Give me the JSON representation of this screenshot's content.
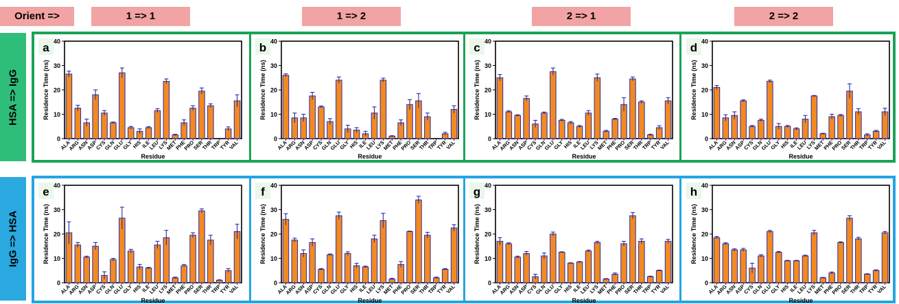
{
  "header": {
    "orient_label": "Orient =>",
    "columns": [
      "1 => 1",
      "1 => 2",
      "2 => 1",
      "2 => 2"
    ]
  },
  "rows": [
    "HSA  => IgG",
    "IgG  => HSA"
  ],
  "colors": {
    "bar": "#f28a22",
    "bar_edge": "#2b2ba0",
    "error": "#2b2ba0",
    "row1_border": "#1aa356",
    "row2_border": "#25a4e3",
    "header_bg": "#f2a3a3"
  },
  "chart_data": [
    {
      "panel_label": "a",
      "type": "bar",
      "xlabel": "Residue",
      "ylabel": "Residence Time (ns)",
      "ylim": [
        0,
        40
      ],
      "yticks": [
        0,
        10,
        20,
        30,
        40
      ],
      "categories": [
        "ALA",
        "ARG",
        "ASN",
        "ASP",
        "CYS",
        "GLN",
        "GLU",
        "GLY",
        "HIS",
        "ILE",
        "LEU",
        "LYS",
        "MET",
        "PHE",
        "PRO",
        "SER",
        "THR",
        "TRP",
        "TYR",
        "VAL"
      ],
      "values": [
        26.5,
        12.5,
        6.5,
        18,
        10.5,
        6.5,
        27,
        4.5,
        3,
        4.5,
        11.5,
        23.5,
        1.5,
        6.5,
        12.5,
        19.5,
        13.5,
        0,
        4,
        15.5
      ],
      "errors": [
        1.2,
        1.2,
        1.5,
        2,
        1,
        0.3,
        2,
        0.5,
        1,
        0.4,
        0.8,
        1,
        0.3,
        1.2,
        1,
        1.3,
        0.8,
        0,
        0.8,
        2.5
      ]
    },
    {
      "panel_label": "b",
      "type": "bar",
      "xlabel": "Residue",
      "ylabel": "Residence Time (ns)",
      "ylim": [
        0,
        40
      ],
      "yticks": [
        0,
        10,
        20,
        30,
        40
      ],
      "categories": [
        "ALA",
        "ARG",
        "ASN",
        "ASP",
        "CYS",
        "GLN",
        "GLU",
        "GLY",
        "HIS",
        "ILE",
        "LEU",
        "LYS",
        "MET",
        "PHE",
        "PRO",
        "SER",
        "THR",
        "TRP",
        "TYR",
        "VAL"
      ],
      "values": [
        26,
        8.5,
        8.5,
        17.5,
        13,
        7,
        24,
        4,
        3.5,
        2,
        10.5,
        24,
        1,
        6.5,
        14,
        15.5,
        9,
        0,
        2,
        12
      ],
      "errors": [
        0.6,
        2,
        1.5,
        1.5,
        0.4,
        1.2,
        1.3,
        1.5,
        1,
        1,
        2.5,
        0.8,
        0.2,
        1.2,
        2,
        3,
        1.5,
        0,
        0.6,
        1.5
      ]
    },
    {
      "panel_label": "c",
      "type": "bar",
      "xlabel": "Residue",
      "ylabel": "Residence Time (ns)",
      "ylim": [
        0,
        40
      ],
      "yticks": [
        0,
        10,
        20,
        30,
        40
      ],
      "categories": [
        "ALA",
        "ARG",
        "ASN",
        "ASP",
        "CYS",
        "GLN",
        "GLU",
        "GLY",
        "HIS",
        "ILE",
        "LEU",
        "LYS",
        "MET",
        "PHE",
        "PRO",
        "SER",
        "THR",
        "TRP",
        "TYR",
        "VAL"
      ],
      "values": [
        25,
        11,
        9.5,
        16.5,
        6,
        10.5,
        27.5,
        7.5,
        6.5,
        5,
        10.5,
        25,
        3,
        8,
        14,
        24.5,
        15,
        1.5,
        4.5,
        15.5
      ],
      "errors": [
        1.3,
        0.4,
        0.3,
        1,
        1.5,
        0.4,
        1.5,
        0.4,
        0.5,
        0.4,
        1,
        1.5,
        0.4,
        0.3,
        2.8,
        0.8,
        0.5,
        0.3,
        0.8,
        1.3
      ]
    },
    {
      "panel_label": "d",
      "type": "bar",
      "xlabel": "Residue",
      "ylabel": "Residence Time (ns)",
      "ylim": [
        0,
        40
      ],
      "yticks": [
        0,
        10,
        20,
        30,
        40
      ],
      "categories": [
        "ALA",
        "ARG",
        "ASN",
        "ASP",
        "CYS",
        "GLN",
        "GLU",
        "GLY",
        "HIS",
        "ILE",
        "LEU",
        "LYS",
        "MET",
        "PHE",
        "PRO",
        "SER",
        "THR",
        "TRP",
        "TYR",
        "VAL"
      ],
      "values": [
        21,
        8.5,
        9.5,
        15.5,
        5,
        7.5,
        23.5,
        5,
        5,
        4,
        8,
        17.5,
        2,
        9,
        9.5,
        19.5,
        11,
        1.5,
        3,
        11
      ],
      "errors": [
        0.8,
        1.3,
        1.5,
        0.4,
        0.4,
        0.5,
        0.5,
        1.2,
        0.4,
        0.4,
        1.5,
        0.2,
        0.2,
        1,
        0.4,
        3,
        1.3,
        0.5,
        0.4,
        1.5
      ]
    },
    {
      "panel_label": "e",
      "type": "bar",
      "xlabel": "Residue",
      "ylabel": "Residence Time (ns)",
      "ylim": [
        0,
        40
      ],
      "yticks": [
        0,
        10,
        20,
        30,
        40
      ],
      "categories": [
        "ALA",
        "ARG",
        "ASN",
        "ASP",
        "CYS",
        "GLN",
        "GLU",
        "GLY",
        "HIS",
        "ILE",
        "LEU",
        "LYS",
        "MET",
        "PHE",
        "PRO",
        "SER",
        "THR",
        "TRP",
        "TYR",
        "VAL"
      ],
      "values": [
        20.5,
        15.5,
        10.5,
        15,
        3,
        9.5,
        26.5,
        13,
        6.5,
        6,
        15.5,
        18.5,
        2,
        7,
        19.5,
        29.5,
        17.5,
        1,
        5,
        21
      ],
      "errors": [
        4.5,
        1,
        0.4,
        1.5,
        1.5,
        0.5,
        4.5,
        0.7,
        1,
        0.3,
        1.5,
        3,
        0.3,
        0.5,
        1,
        0.8,
        2,
        0.2,
        0.8,
        3
      ]
    },
    {
      "panel_label": "f",
      "type": "bar",
      "xlabel": "Residue",
      "ylabel": "Residence Time (ns)",
      "ylim": [
        0,
        40
      ],
      "yticks": [
        0,
        10,
        20,
        30,
        40
      ],
      "categories": [
        "ALA",
        "ARG",
        "ASN",
        "ASP",
        "CYS",
        "GLN",
        "GLU",
        "GLY",
        "HIS",
        "ILE",
        "LEU",
        "LYS",
        "MET",
        "PHE",
        "PRO",
        "SER",
        "THR",
        "TRP",
        "TYR",
        "VAL"
      ],
      "values": [
        26,
        17.5,
        12,
        16.5,
        5.5,
        11.5,
        27.5,
        12,
        7,
        6.5,
        18,
        25.5,
        1.5,
        7.5,
        21,
        34,
        19.5,
        2,
        5.5,
        22.5
      ],
      "errors": [
        2.3,
        0.8,
        1.5,
        1.5,
        0.3,
        0.3,
        1.5,
        0.7,
        1,
        0.3,
        1.5,
        3,
        0.3,
        1.2,
        0.2,
        1.5,
        1.2,
        0.3,
        0.3,
        1.3
      ]
    },
    {
      "panel_label": "g",
      "type": "bar",
      "xlabel": "Residue",
      "ylabel": "Residence Time (ns)",
      "ylim": [
        0,
        40
      ],
      "yticks": [
        0,
        10,
        20,
        30,
        40
      ],
      "categories": [
        "ALA",
        "ARG",
        "ASN",
        "ASP",
        "CYS",
        "GLN",
        "GLU",
        "GLY",
        "HIS",
        "ILE",
        "LEU",
        "LYS",
        "MET",
        "PHE",
        "PRO",
        "SER",
        "THR",
        "TRP",
        "TYR",
        "VAL"
      ],
      "values": [
        17,
        16,
        10.5,
        12,
        2.5,
        11,
        20,
        12.5,
        8,
        8.5,
        13,
        16.5,
        1.5,
        3.5,
        16,
        27.5,
        17,
        2.5,
        5,
        17
      ],
      "errors": [
        1.5,
        0.4,
        0.4,
        0.8,
        1,
        1.2,
        0.8,
        0.2,
        0.2,
        0.2,
        0.4,
        0.5,
        0.2,
        0.5,
        1,
        1.3,
        1,
        0.2,
        0.2,
        0.8
      ]
    },
    {
      "panel_label": "h",
      "type": "bar",
      "xlabel": "Residue",
      "ylabel": "Residence Time (ns)",
      "ylim": [
        0,
        40
      ],
      "yticks": [
        0,
        10,
        20,
        30,
        40
      ],
      "categories": [
        "ALA",
        "ARG",
        "ASN",
        "ASP",
        "CYS",
        "GLN",
        "GLU",
        "GLY",
        "HIS",
        "ILE",
        "LEU",
        "LYS",
        "MET",
        "PHE",
        "PRO",
        "SER",
        "THR",
        "TRP",
        "TYR",
        "VAL"
      ],
      "values": [
        18.5,
        16,
        13.5,
        13.5,
        6,
        11,
        21,
        12.5,
        9,
        9,
        11,
        20.5,
        2,
        4,
        16.5,
        26.5,
        18,
        3.5,
        5,
        20.5
      ],
      "errors": [
        0.5,
        0.4,
        0.4,
        0.6,
        2,
        0.5,
        0.5,
        0.3,
        0.2,
        0.2,
        0.3,
        1,
        0.2,
        0.4,
        0.3,
        1,
        0.6,
        0.2,
        0.3,
        0.5
      ]
    }
  ]
}
